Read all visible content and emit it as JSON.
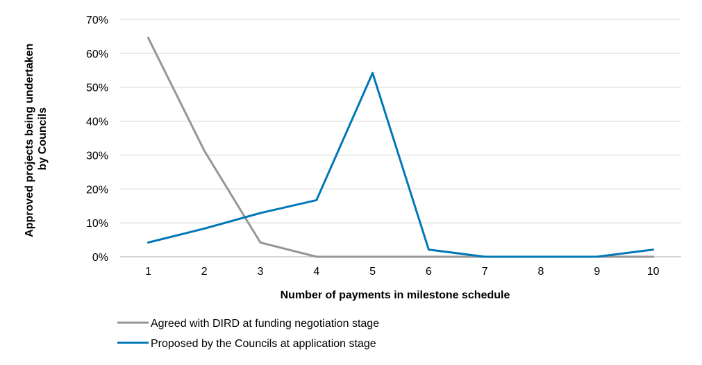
{
  "chart_data": {
    "type": "line",
    "title": "",
    "xlabel": "Number of payments in milestone schedule",
    "ylabel_lines": [
      "Approved projects being undertaken",
      "by Councils"
    ],
    "x": [
      1,
      2,
      3,
      4,
      5,
      6,
      7,
      8,
      9,
      10
    ],
    "xtick_labels": [
      "1",
      "2",
      "3",
      "4",
      "5",
      "6",
      "7",
      "8",
      "9",
      "10"
    ],
    "ylim": [
      0,
      70
    ],
    "ytick_values": [
      0,
      10,
      20,
      30,
      40,
      50,
      60,
      70
    ],
    "ytick_labels": [
      "0%",
      "10%",
      "20%",
      "30%",
      "40%",
      "50%",
      "60%",
      "70%"
    ],
    "grid": true,
    "legend_position": "bottom-left",
    "series": [
      {
        "name": "Agreed with DIRD at funding negotiation stage",
        "color": "#969696",
        "values": [
          64.6,
          31.3,
          4.2,
          0,
          0,
          0,
          0,
          0,
          0,
          0
        ]
      },
      {
        "name": "Proposed by the Councils at application stage",
        "color": "#0077b6",
        "values": [
          4.2,
          8.3,
          12.9,
          16.7,
          54.2,
          2.1,
          0,
          0,
          0,
          2.1
        ]
      }
    ]
  }
}
